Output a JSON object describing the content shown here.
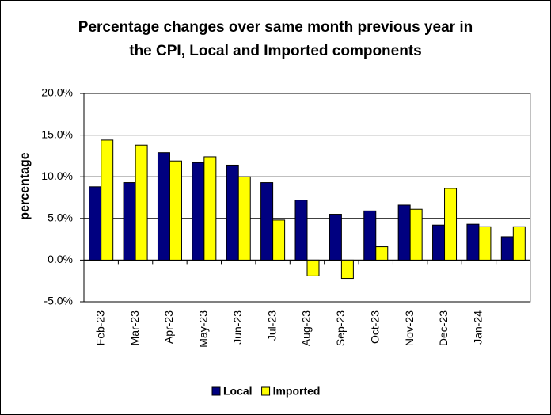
{
  "chart_data": {
    "type": "bar",
    "title": "Percentage changes over same month previous year in the CPI, Local and Imported components",
    "y_label": "percentage",
    "categories": [
      "Feb-23",
      "Mar-23",
      "Apr-23",
      "May-23",
      "Jun-23",
      "Jul-23",
      "Aug-23",
      "Sep-23",
      "Oct-23",
      "Nov-23",
      "Dec-23",
      "Jan-24",
      null
    ],
    "series": [
      {
        "name": "Local",
        "color": "#000080",
        "values": [
          8.8,
          9.3,
          12.9,
          11.7,
          11.4,
          9.3,
          7.2,
          5.5,
          5.9,
          6.6,
          4.2,
          4.3,
          2.8
        ]
      },
      {
        "name": "Imported",
        "color": "#ffff00",
        "values": [
          14.4,
          13.8,
          11.9,
          12.4,
          10.0,
          4.8,
          -1.9,
          -2.2,
          1.6,
          6.1,
          8.6,
          4.0,
          4.0
        ]
      }
    ],
    "ylim": [
      -5,
      20
    ],
    "yticks": [
      {
        "value": -5,
        "label": "-5.0%"
      },
      {
        "value": 0,
        "label": "0.0%"
      },
      {
        "value": 5,
        "label": "5.0%"
      },
      {
        "value": 10,
        "label": "10.0%"
      },
      {
        "value": 15,
        "label": "15.0%"
      },
      {
        "value": 20,
        "label": "20.0%"
      }
    ],
    "grid": true,
    "legend": "bottom"
  }
}
